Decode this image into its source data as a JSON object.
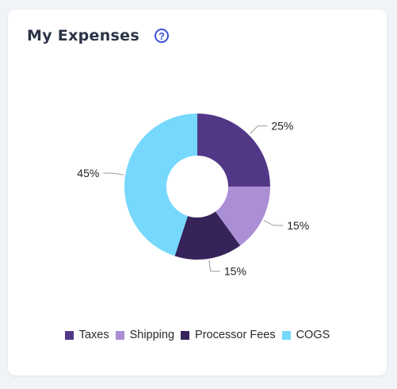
{
  "card": {
    "title": "My Expenses",
    "help_symbol": "?"
  },
  "chart_data": {
    "type": "pie",
    "donut": true,
    "categories": [
      "Taxes",
      "Shipping",
      "Processor Fees",
      "COGS"
    ],
    "values": [
      25,
      15,
      15,
      45
    ],
    "labels": [
      "25%",
      "15%",
      "15%",
      "45%"
    ],
    "colors": [
      "#533787",
      "#ab8fd4",
      "#36235a",
      "#75d8fc"
    ],
    "legend_position": "bottom"
  }
}
